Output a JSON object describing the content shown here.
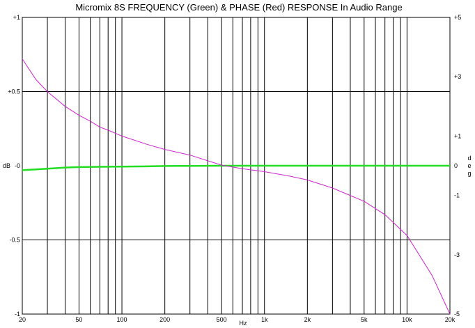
{
  "chart_data": {
    "type": "line",
    "title": "Micromix 8S  FREQUENCY (Green) &  PHASE (Red) RESPONSE In Audio Range",
    "xlabel": "Hz",
    "ylabel": "dB",
    "y2label": "deg",
    "xscale": "log",
    "xlim": [
      20,
      20000
    ],
    "ylim": [
      -1,
      1
    ],
    "y2lim": [
      -5,
      5
    ],
    "grid": true,
    "x_ticks": [
      {
        "value": 20,
        "label": "20"
      },
      {
        "value": 50,
        "label": "50"
      },
      {
        "value": 100,
        "label": "100"
      },
      {
        "value": 200,
        "label": "200"
      },
      {
        "value": 500,
        "label": "500"
      },
      {
        "value": 1000,
        "label": "1k"
      },
      {
        "value": 2000,
        "label": "2k"
      },
      {
        "value": 5000,
        "label": "5k"
      },
      {
        "value": 10000,
        "label": "10k"
      },
      {
        "value": 20000,
        "label": "20k"
      }
    ],
    "y_ticks": [
      {
        "value": 1,
        "label": "+1"
      },
      {
        "value": 0.5,
        "label": "+0.5"
      },
      {
        "value": 0,
        "label": "-0"
      },
      {
        "value": -0.5,
        "label": "-0.5"
      },
      {
        "value": -1,
        "label": "-1"
      }
    ],
    "y2_ticks": [
      {
        "value": 5,
        "label": "+5"
      },
      {
        "value": 3,
        "label": "+3"
      },
      {
        "value": 1,
        "label": "+1"
      },
      {
        "value": 0,
        "label": "0"
      },
      {
        "value": -1,
        "label": "-1"
      },
      {
        "value": -3,
        "label": "-3"
      },
      {
        "value": -5,
        "label": "-5"
      }
    ],
    "series": [
      {
        "name": "FREQUENCY (Green)",
        "axis": "left",
        "color": "#22dd22",
        "x": [
          20,
          25,
          30,
          40,
          50,
          70,
          100,
          150,
          200,
          300,
          500,
          700,
          1000,
          2000,
          5000,
          10000,
          20000
        ],
        "values": [
          -0.03,
          -0.025,
          -0.02,
          -0.012,
          -0.009,
          -0.007,
          -0.006,
          -0.004,
          -0.002,
          -0.001,
          0.0,
          0.0,
          0.0,
          0.0,
          0.0,
          0.0,
          0.0
        ]
      },
      {
        "name": "PHASE (Red)",
        "axis": "right",
        "color": "#cc22cc",
        "x": [
          20,
          25,
          30,
          40,
          50,
          60,
          70,
          80,
          100,
          150,
          200,
          300,
          500,
          700,
          1000,
          1500,
          2000,
          3000,
          5000,
          7000,
          10000,
          15000,
          20000
        ],
        "values": [
          3.6,
          2.9,
          2.5,
          2.0,
          1.7,
          1.5,
          1.3,
          1.2,
          1.0,
          0.72,
          0.55,
          0.36,
          0.02,
          -0.1,
          -0.2,
          -0.35,
          -0.48,
          -0.75,
          -1.2,
          -1.65,
          -2.35,
          -3.7,
          -5.0
        ]
      }
    ]
  }
}
